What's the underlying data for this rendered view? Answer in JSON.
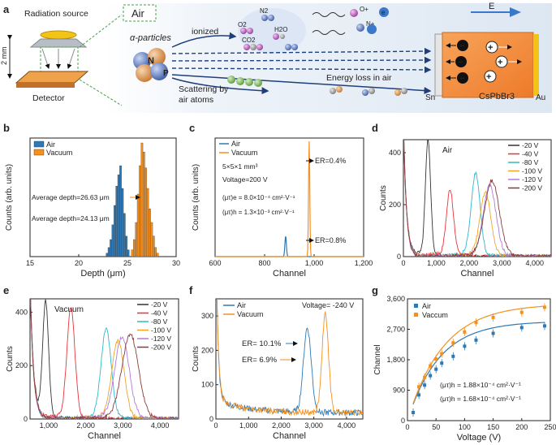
{
  "panel_a": {
    "label": "a",
    "radiation_source": "Radiation source",
    "detector": "Detector",
    "distance": "2 mm",
    "air": "Air",
    "alpha": "α-particles",
    "alpha_symbols": [
      "N",
      "P"
    ],
    "ionized": "ionized",
    "molecules": [
      "N2",
      "O2",
      "H2O",
      "CO2"
    ],
    "ions": [
      "O+",
      "N+"
    ],
    "electron": "e",
    "scattering_line1": "Scattering by",
    "scattering_line2": "air atoms",
    "energy_loss": "Energy loss in air",
    "field": "E",
    "crystal": "CsPbBr3",
    "sn": "Sn",
    "au": "Au",
    "charge_minus": "−",
    "charge_plus": "+"
  },
  "panel_b": {
    "label": "b"
  },
  "panel_c": {
    "label": "c"
  },
  "panel_d": {
    "label": "d"
  },
  "panel_e": {
    "label": "e"
  },
  "panel_f": {
    "label": "f"
  },
  "panel_g": {
    "label": "g"
  },
  "colors": {
    "air_blue": "#2e79b5",
    "vacuum_orange": "#f5901e",
    "v20": "#333333",
    "v40": "#e8343a",
    "v80": "#2fb9c9",
    "v100": "#f0a623",
    "v120": "#b07bd8",
    "v200": "#8b3a3a"
  },
  "chart_data": [
    {
      "panel": "b",
      "type": "bar",
      "xlabel": "Depth (μm)",
      "ylabel": "Counts (arb. units)",
      "xlim": [
        15,
        30
      ],
      "xticks": [
        15,
        20,
        25,
        30
      ],
      "legend": [
        "Air",
        "Vacuum"
      ],
      "annotations": [
        "Average depth=26.63 μm",
        "Average depth=24.13 μm"
      ],
      "series": [
        {
          "name": "Air",
          "x": [
            22.8,
            23.0,
            23.2,
            23.4,
            23.6,
            23.8,
            24.0,
            24.2,
            24.4,
            24.6,
            24.8,
            25.0
          ],
          "values": [
            3,
            8,
            15,
            28,
            45,
            62,
            72,
            80,
            60,
            38,
            18,
            6
          ]
        },
        {
          "name": "Vacuum",
          "x": [
            25.4,
            25.6,
            25.8,
            26.0,
            26.2,
            26.4,
            26.6,
            26.8,
            27.0,
            27.2,
            27.4,
            27.6,
            27.8,
            28.0
          ],
          "values": [
            6,
            15,
            30,
            55,
            80,
            100,
            92,
            78,
            60,
            42,
            30,
            18,
            8,
            3
          ]
        }
      ]
    },
    {
      "panel": "c",
      "type": "line",
      "xlabel": "Channel",
      "ylabel": "Counts (arb. units)",
      "xlim": [
        600,
        1200
      ],
      "xticks": [
        600,
        800,
        1000,
        1200
      ],
      "xtick_labels": [
        "600",
        "800",
        "1,000",
        "1,200"
      ],
      "legend": [
        "Air",
        "Vacuum"
      ],
      "annotations": [
        "5×5×1 mm³",
        "Voltage=200 V",
        "(μτ)e = 8.0×10⁻⁴ cm²·V⁻¹",
        "(μτ)h = 1.3×10⁻³ cm²·V⁻¹",
        "ER=0.4%",
        "ER=0.8%"
      ],
      "series": [
        {
          "name": "Air",
          "peak_channel": 885,
          "relative_height": 0.18
        },
        {
          "name": "Vacuum",
          "peak_channel": 980,
          "relative_height": 1.0
        }
      ]
    },
    {
      "panel": "d",
      "type": "line",
      "title": "Air",
      "xlabel": "Channel",
      "ylabel": "Counts",
      "xlim": [
        0,
        4500
      ],
      "ylim": [
        0,
        450
      ],
      "xticks": [
        0,
        1000,
        2000,
        3000,
        4000
      ],
      "xtick_labels": [
        "0",
        "1,000",
        "2,000",
        "3,000",
        "4,000"
      ],
      "yticks": [
        0,
        200,
        400
      ],
      "legend": [
        "-20 V",
        "-40 V",
        "-80 V",
        "-100 V",
        "-120 V",
        "-200 V"
      ],
      "series": [
        {
          "name": "-20 V",
          "peak_channel": 750,
          "peak_counts": 440
        },
        {
          "name": "-40 V",
          "peak_channel": 1420,
          "peak_counts": 250
        },
        {
          "name": "-80 V",
          "peak_channel": 2200,
          "peak_counts": 315
        },
        {
          "name": "-100 V",
          "peak_channel": 2500,
          "peak_counts": 240
        },
        {
          "name": "-120 V",
          "peak_channel": 2630,
          "peak_counts": 265
        },
        {
          "name": "-200 V",
          "peak_channel": 2700,
          "peak_counts": 285
        }
      ]
    },
    {
      "panel": "e",
      "type": "line",
      "title": "Vacuum",
      "xlabel": "Channel",
      "ylabel": "Counts",
      "xlim": [
        500,
        4500
      ],
      "ylim": [
        0,
        450
      ],
      "xticks": [
        1000,
        2000,
        3000,
        4000
      ],
      "xtick_labels": [
        "1,000",
        "2,000",
        "3,000",
        "4,000"
      ],
      "yticks": [
        0,
        200,
        400
      ],
      "legend": [
        "-20 V",
        "-40 V",
        "-80 V",
        "-100 V",
        "-120 V",
        "-200 V"
      ],
      "series": [
        {
          "name": "-20 V",
          "peak_channel": 920,
          "peak_counts": 430
        },
        {
          "name": "-40 V",
          "peak_channel": 1600,
          "peak_counts": 410
        },
        {
          "name": "-80 V",
          "peak_channel": 2550,
          "peak_counts": 330
        },
        {
          "name": "-100 V",
          "peak_channel": 2870,
          "peak_counts": 285
        },
        {
          "name": "-120 V",
          "peak_channel": 2980,
          "peak_counts": 300
        },
        {
          "name": "-200 V",
          "peak_channel": 3200,
          "peak_counts": 310
        }
      ]
    },
    {
      "panel": "f",
      "type": "line",
      "xlabel": "Channel",
      "ylabel": "Counts",
      "xlim": [
        0,
        4500
      ],
      "ylim": [
        0,
        350
      ],
      "xticks": [
        0,
        1000,
        2000,
        3000,
        4000
      ],
      "xtick_labels": [
        "0",
        "1,000",
        "2,000",
        "3,000",
        "4,000"
      ],
      "yticks": [
        0,
        100,
        200,
        300
      ],
      "legend": [
        "Air",
        "Vacuum"
      ],
      "annotations": [
        "Voltage= -240 V",
        "ER= 10.1%",
        "ER= 6.9%"
      ],
      "series": [
        {
          "name": "Air",
          "peak_channel": 2800,
          "peak_counts": 245
        },
        {
          "name": "Vacuum",
          "peak_channel": 3350,
          "peak_counts": 285
        }
      ]
    },
    {
      "panel": "g",
      "type": "scatter",
      "xlabel": "Voltage (V)",
      "ylabel": "Channel",
      "xlim": [
        0,
        250
      ],
      "ylim": [
        0,
        3600
      ],
      "xticks": [
        0,
        50,
        100,
        150,
        200,
        250
      ],
      "yticks": [
        0,
        900,
        1800,
        2700,
        3600
      ],
      "ytick_labels": [
        "0",
        "900",
        "1,800",
        "2,700",
        "3,600"
      ],
      "legend": [
        "Air",
        "Vaccum"
      ],
      "annotations": [
        "(μτ)h = 1.88×10⁻⁴ cm²·V⁻¹",
        "(μτ)h = 1.68×10⁻⁴ cm²·V⁻¹"
      ],
      "series": [
        {
          "name": "Air",
          "x": [
            10,
            20,
            30,
            40,
            50,
            60,
            80,
            100,
            120,
            150,
            200,
            240
          ],
          "values": [
            240,
            760,
            1050,
            1330,
            1520,
            1700,
            1900,
            2200,
            2380,
            2580,
            2750,
            2800
          ],
          "fit_saturation": 3000
        },
        {
          "name": "Vaccum",
          "x": [
            20,
            30,
            40,
            50,
            60,
            80,
            100,
            120,
            150,
            200,
            240
          ],
          "values": [
            1000,
            1280,
            1620,
            1820,
            1980,
            2300,
            2620,
            2900,
            3050,
            3200,
            3350
          ],
          "fit_saturation": 3600
        }
      ]
    }
  ]
}
